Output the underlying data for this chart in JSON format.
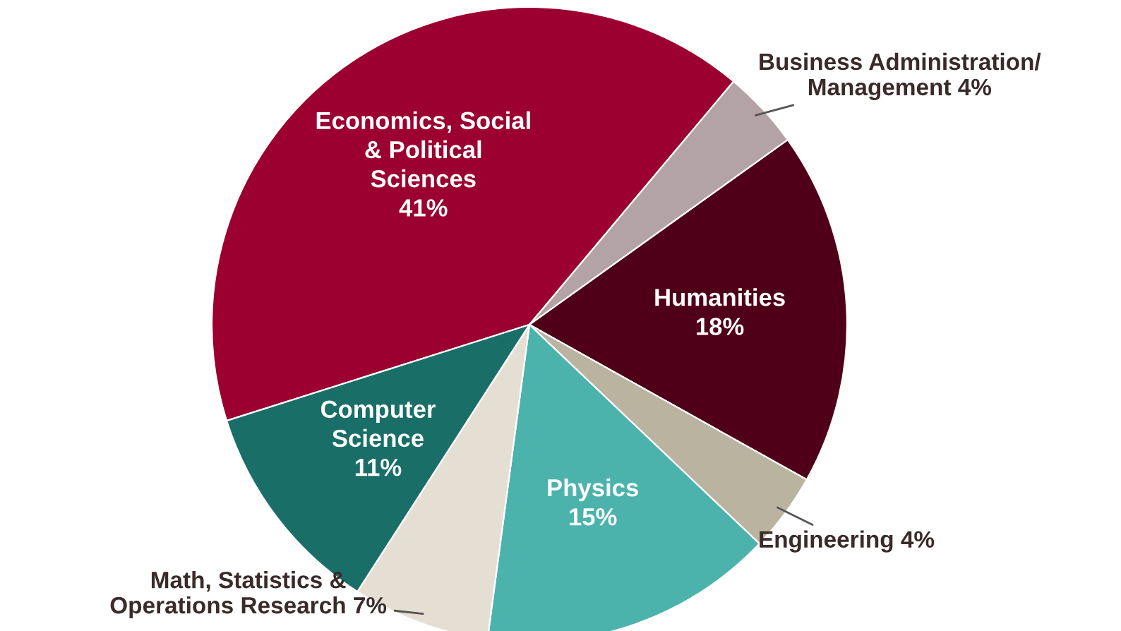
{
  "chart_data": {
    "type": "pie",
    "categories": [
      "Economics, Social\n& Political\nSciences",
      "Business Administration/\nManagement",
      "Humanities",
      "Engineering",
      "Physics",
      "Math, Statistics &\nOperations Research",
      "Computer\nScience"
    ],
    "values": [
      41,
      4,
      18,
      4,
      15,
      7,
      11
    ],
    "value_labels": [
      "41%",
      "4%",
      "18%",
      "4%",
      "15%",
      "7%",
      "11%"
    ],
    "colors": [
      "#9b0030",
      "#b3a3a6",
      "#4f0018",
      "#bab3a0",
      "#4bb3ac",
      "#e5ded3",
      "#1a6e68"
    ],
    "legend": false
  }
}
